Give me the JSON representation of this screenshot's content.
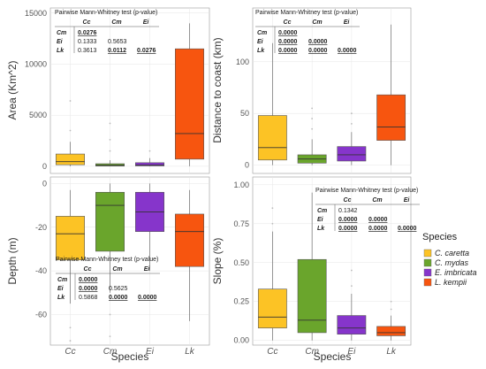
{
  "species_codes": [
    "Cc",
    "Cm",
    "Ei",
    "Lk"
  ],
  "colors": {
    "Cc": "#fcc325",
    "Cm": "#6aa52c",
    "Ei": "#8635cb",
    "Lk": "#f7550f"
  },
  "legend": {
    "title": "Species",
    "items": [
      {
        "code": "Cc",
        "label": "C. caretta"
      },
      {
        "code": "Cm",
        "label": "C. mydas"
      },
      {
        "code": "Ei",
        "label": "E. imbricata"
      },
      {
        "code": "Lk",
        "label": "L. kempii"
      }
    ]
  },
  "chart_data": [
    {
      "type": "box",
      "ylabel": "Area (Km^2)",
      "xlabel": "",
      "ylim": [
        -700,
        15500
      ],
      "yticks": [
        0,
        5000,
        10000,
        15000
      ],
      "ytick_labels": [
        "0",
        "5000",
        "10000",
        "15000"
      ],
      "categories": [
        "Cc",
        "Cm",
        "Ei",
        "Lk"
      ],
      "boxes": [
        {
          "code": "Cc",
          "min": 0,
          "q1": 150,
          "median": 450,
          "q3": 1200,
          "max": 2400,
          "outliers": [
            3500,
            6400
          ]
        },
        {
          "code": "Cm",
          "min": 0,
          "q1": 30,
          "median": 90,
          "q3": 250,
          "max": 600,
          "outliers": [
            1500,
            2600,
            4200
          ]
        },
        {
          "code": "Ei",
          "min": 0,
          "q1": 40,
          "median": 120,
          "q3": 350,
          "max": 800,
          "outliers": [
            1500
          ]
        },
        {
          "code": "Lk",
          "min": 0,
          "q1": 700,
          "median": 3200,
          "q3": 11500,
          "max": 14000,
          "outliers": []
        }
      ],
      "pvalue_table": {
        "title": "Pairwise Mann-Whitney test (p-value)",
        "col_headers": [
          "Cc",
          "Cm",
          "Ei"
        ],
        "rows": [
          {
            "label": "Cm",
            "cells": [
              "0.0276",
              "",
              ""
            ],
            "underline": [
              true,
              false,
              false
            ]
          },
          {
            "label": "Ei",
            "cells": [
              "0.1333",
              "0.5653",
              ""
            ],
            "underline": [
              false,
              false,
              false
            ]
          },
          {
            "label": "Lk",
            "cells": [
              "0.3613",
              "0.0112",
              "0.0276"
            ],
            "underline": [
              false,
              true,
              true
            ]
          }
        ]
      }
    },
    {
      "type": "box",
      "ylabel": "Distance to coast (km)",
      "xlabel": "",
      "ylim": [
        -8,
        152
      ],
      "yticks": [
        0,
        50,
        100
      ],
      "ytick_labels": [
        "0",
        "50",
        "100"
      ],
      "categories": [
        "Cc",
        "Cm",
        "Ei",
        "Lk"
      ],
      "boxes": [
        {
          "code": "Cc",
          "min": 0,
          "q1": 5,
          "median": 17,
          "q3": 48,
          "max": 118,
          "outliers": []
        },
        {
          "code": "Cm",
          "min": 0,
          "q1": 2,
          "median": 6,
          "q3": 10,
          "max": 25,
          "outliers": [
            35,
            45,
            55
          ]
        },
        {
          "code": "Ei",
          "min": 0,
          "q1": 4,
          "median": 10,
          "q3": 18,
          "max": 32,
          "outliers": [
            40,
            50
          ]
        },
        {
          "code": "Lk",
          "min": 0,
          "q1": 24,
          "median": 37,
          "q3": 68,
          "max": 136,
          "outliers": []
        }
      ],
      "pvalue_table": {
        "title": "Pairwise Mann-Whitney test (p-value)",
        "col_headers": [
          "Cc",
          "Cm",
          "Ei"
        ],
        "rows": [
          {
            "label": "Cm",
            "cells": [
              "0.0000",
              "",
              ""
            ],
            "underline": [
              true,
              false,
              false
            ]
          },
          {
            "label": "Ei",
            "cells": [
              "0.0000",
              "0.0000",
              ""
            ],
            "underline": [
              true,
              true,
              false
            ]
          },
          {
            "label": "Lk",
            "cells": [
              "0.0000",
              "0.0000",
              "0.0000"
            ],
            "underline": [
              true,
              true,
              true
            ]
          }
        ]
      }
    },
    {
      "type": "box",
      "ylabel": "Depth (m)",
      "xlabel": "Species",
      "ylim": [
        -74,
        3
      ],
      "yticks": [
        0,
        -20,
        -40,
        -60
      ],
      "ytick_labels": [
        "0",
        "-20",
        "-40",
        "-60"
      ],
      "categories": [
        "Cc",
        "Cm",
        "Ei",
        "Lk"
      ],
      "boxes": [
        {
          "code": "Cc",
          "min": -55,
          "q1": -35,
          "median": -23,
          "q3": -15,
          "max": -3,
          "outliers": [
            -66,
            -72
          ]
        },
        {
          "code": "Cm",
          "min": -50,
          "q1": -31,
          "median": -10,
          "q3": -4,
          "max": 0,
          "outliers": [
            -60,
            -70
          ]
        },
        {
          "code": "Ei",
          "min": -40,
          "q1": -22,
          "median": -13,
          "q3": -4,
          "max": 0,
          "outliers": []
        },
        {
          "code": "Lk",
          "min": -63,
          "q1": -38,
          "median": -22,
          "q3": -14,
          "max": -3,
          "outliers": []
        }
      ],
      "pvalue_table": {
        "title": "Pairwise Mann-Whitney test (p-value)",
        "col_headers": [
          "Cc",
          "Cm",
          "Ei"
        ],
        "rows": [
          {
            "label": "Cm",
            "cells": [
              "0.0000",
              "",
              ""
            ],
            "underline": [
              true,
              false,
              false
            ]
          },
          {
            "label": "Ei",
            "cells": [
              "0.0000",
              "0.5625",
              ""
            ],
            "underline": [
              true,
              false,
              false
            ]
          },
          {
            "label": "Lk",
            "cells": [
              "0.5868",
              "0.0000",
              "0.0000"
            ],
            "underline": [
              false,
              true,
              true
            ]
          }
        ]
      }
    },
    {
      "type": "box",
      "ylabel": "Slope (%)",
      "xlabel": "Species",
      "ylim": [
        -0.03,
        1.05
      ],
      "yticks": [
        0,
        0.25,
        0.5,
        0.75,
        1.0
      ],
      "ytick_labels": [
        "0.00",
        "0.25",
        "0.50",
        "0.75",
        "1.00"
      ],
      "categories": [
        "Cc",
        "Cm",
        "Ei",
        "Lk"
      ],
      "boxes": [
        {
          "code": "Cc",
          "min": 0,
          "q1": 0.08,
          "median": 0.15,
          "q3": 0.33,
          "max": 0.7,
          "outliers": [
            0.75,
            0.85
          ]
        },
        {
          "code": "Cm",
          "min": 0,
          "q1": 0.05,
          "median": 0.13,
          "q3": 0.52,
          "max": 0.95,
          "outliers": []
        },
        {
          "code": "Ei",
          "min": 0,
          "q1": 0.04,
          "median": 0.08,
          "q3": 0.16,
          "max": 0.3,
          "outliers": [
            0.35,
            0.45
          ]
        },
        {
          "code": "Lk",
          "min": 0,
          "q1": 0.03,
          "median": 0.05,
          "q3": 0.09,
          "max": 0.16,
          "outliers": [
            0.2,
            0.25
          ]
        }
      ],
      "pvalue_table": {
        "title": "Pairwise Mann-Whitney test (p-value)",
        "col_headers": [
          "Cc",
          "Cm",
          "Ei"
        ],
        "rows": [
          {
            "label": "Cm",
            "cells": [
              "0.1342",
              "",
              ""
            ],
            "underline": [
              false,
              false,
              false
            ]
          },
          {
            "label": "Ei",
            "cells": [
              "0.0000",
              "0.0000",
              ""
            ],
            "underline": [
              true,
              true,
              false
            ]
          },
          {
            "label": "Lk",
            "cells": [
              "0.0000",
              "0.0000",
              "0.0000"
            ],
            "underline": [
              true,
              true,
              true
            ]
          }
        ]
      }
    }
  ]
}
